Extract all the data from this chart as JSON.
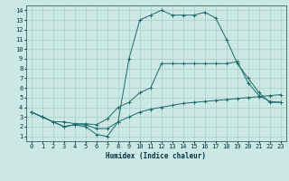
{
  "xlabel": "Humidex (Indice chaleur)",
  "background_color": "#cce8e4",
  "grid_color": "#aaccca",
  "line_color": "#1a6b6b",
  "xlim": [
    -0.5,
    23.5
  ],
  "ylim": [
    0.5,
    14.5
  ],
  "xticks": [
    0,
    1,
    2,
    3,
    4,
    5,
    6,
    7,
    8,
    9,
    10,
    11,
    12,
    13,
    14,
    15,
    16,
    17,
    18,
    19,
    20,
    21,
    22,
    23
  ],
  "yticks": [
    1,
    2,
    3,
    4,
    5,
    6,
    7,
    8,
    9,
    10,
    11,
    12,
    13,
    14
  ],
  "line1_x": [
    0,
    1,
    2,
    3,
    4,
    5,
    6,
    7,
    8,
    9,
    10,
    11,
    12,
    13,
    14,
    15,
    16,
    17,
    18,
    19,
    20,
    21,
    22,
    23
  ],
  "line1_y": [
    3.5,
    3.0,
    2.5,
    2.0,
    2.2,
    2.2,
    1.8,
    1.8,
    2.5,
    3.0,
    3.5,
    3.8,
    4.0,
    4.2,
    4.4,
    4.5,
    4.6,
    4.7,
    4.8,
    4.9,
    5.0,
    5.1,
    5.2,
    5.3
  ],
  "line2_x": [
    0,
    1,
    2,
    3,
    4,
    5,
    6,
    7,
    8,
    9,
    10,
    11,
    12,
    13,
    14,
    15,
    16,
    17,
    18,
    19,
    20,
    21,
    22,
    23
  ],
  "line2_y": [
    3.5,
    3.0,
    2.5,
    2.5,
    2.3,
    2.3,
    2.2,
    2.8,
    4.0,
    4.5,
    5.5,
    6.0,
    8.5,
    8.5,
    8.5,
    8.5,
    8.5,
    8.5,
    8.5,
    8.7,
    6.5,
    5.2,
    4.6,
    4.5
  ],
  "line3_x": [
    0,
    1,
    2,
    3,
    4,
    5,
    6,
    7,
    8,
    9,
    10,
    11,
    12,
    13,
    14,
    15,
    16,
    17,
    18,
    19,
    20,
    21,
    22,
    23
  ],
  "line3_y": [
    3.5,
    3.0,
    2.5,
    2.0,
    2.2,
    2.0,
    1.2,
    1.0,
    2.5,
    9.0,
    13.0,
    13.5,
    14.0,
    13.5,
    13.5,
    13.5,
    13.8,
    13.2,
    11.0,
    8.5,
    7.0,
    5.5,
    4.5,
    4.5
  ]
}
